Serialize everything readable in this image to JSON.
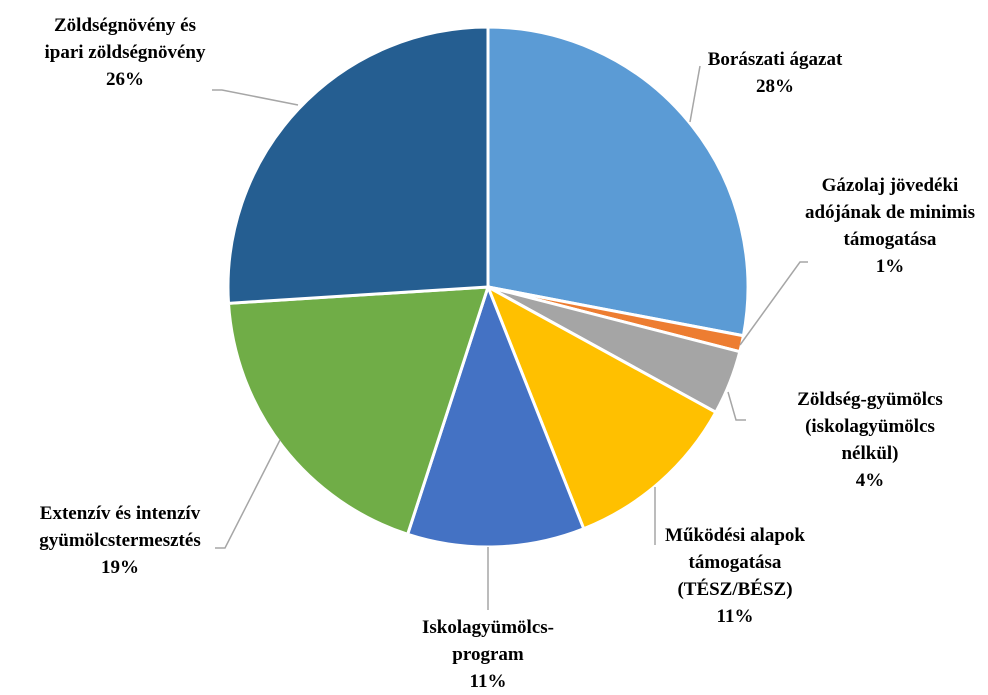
{
  "chart_data": {
    "type": "pie",
    "categories": [
      "Borászati ágazat",
      "Gázolaj jövedéki adójának de minimis támogatása",
      "Zöldség-gyümölcs (iskolagyümölcs nélkül)",
      "Működési alapok támogatása (TÉSZ/BÉSZ)",
      "Iskolagyümölcs-program",
      "Extenzív és intenzív gyümölcstermesztés",
      "Zöldségnövény és ipari zöldségnövény"
    ],
    "values": [
      28,
      1,
      4,
      11,
      11,
      19,
      26
    ],
    "value_labels": [
      "28%",
      "1%",
      "4%",
      "11%",
      "11%",
      "19%",
      "26%"
    ],
    "colors": [
      "#5b9bd5",
      "#ed7d31",
      "#a5a5a5",
      "#ffc000",
      "#4472c4",
      "#70ad47",
      "#255e91"
    ]
  }
}
